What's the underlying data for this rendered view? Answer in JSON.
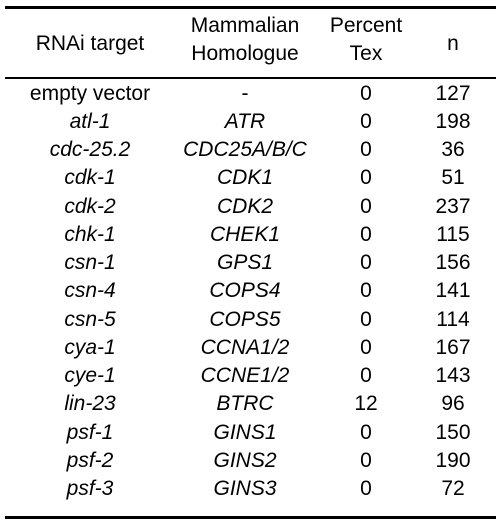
{
  "table": {
    "headers": {
      "target": "RNAi target",
      "homologue_line1": "Mammalian",
      "homologue_line2": "Homologue",
      "percent_line1": "Percent",
      "percent_line2": "Tex",
      "n": "n"
    },
    "rows": [
      {
        "target": "empty vector",
        "homologue": "-",
        "percent": "0",
        "n": "127"
      },
      {
        "target": "atl-1",
        "homologue": "ATR",
        "percent": "0",
        "n": "198"
      },
      {
        "target": "cdc-25.2",
        "homologue": "CDC25A/B/C",
        "percent": "0",
        "n": "36"
      },
      {
        "target": "cdk-1",
        "homologue": "CDK1",
        "percent": "0",
        "n": "51"
      },
      {
        "target": "cdk-2",
        "homologue": "CDK2",
        "percent": "0",
        "n": "237"
      },
      {
        "target": "chk-1",
        "homologue": "CHEK1",
        "percent": "0",
        "n": "115"
      },
      {
        "target": "csn-1",
        "homologue": "GPS1",
        "percent": "0",
        "n": "156"
      },
      {
        "target": "csn-4",
        "homologue": "COPS4",
        "percent": "0",
        "n": "141"
      },
      {
        "target": "csn-5",
        "homologue": "COPS5",
        "percent": "0",
        "n": "114"
      },
      {
        "target": "cya-1",
        "homologue": "CCNA1/2",
        "percent": "0",
        "n": "167"
      },
      {
        "target": "cye-1",
        "homologue": "CCNE1/2",
        "percent": "0",
        "n": "143"
      },
      {
        "target": "lin-23",
        "homologue": "BTRC",
        "percent": "12",
        "n": "96"
      },
      {
        "target": "psf-1",
        "homologue": "GINS1",
        "percent": "0",
        "n": "150"
      },
      {
        "target": "psf-2",
        "homologue": "GINS2",
        "percent": "0",
        "n": "190"
      },
      {
        "target": "psf-3",
        "homologue": "GINS3",
        "percent": "0",
        "n": "72"
      }
    ]
  }
}
